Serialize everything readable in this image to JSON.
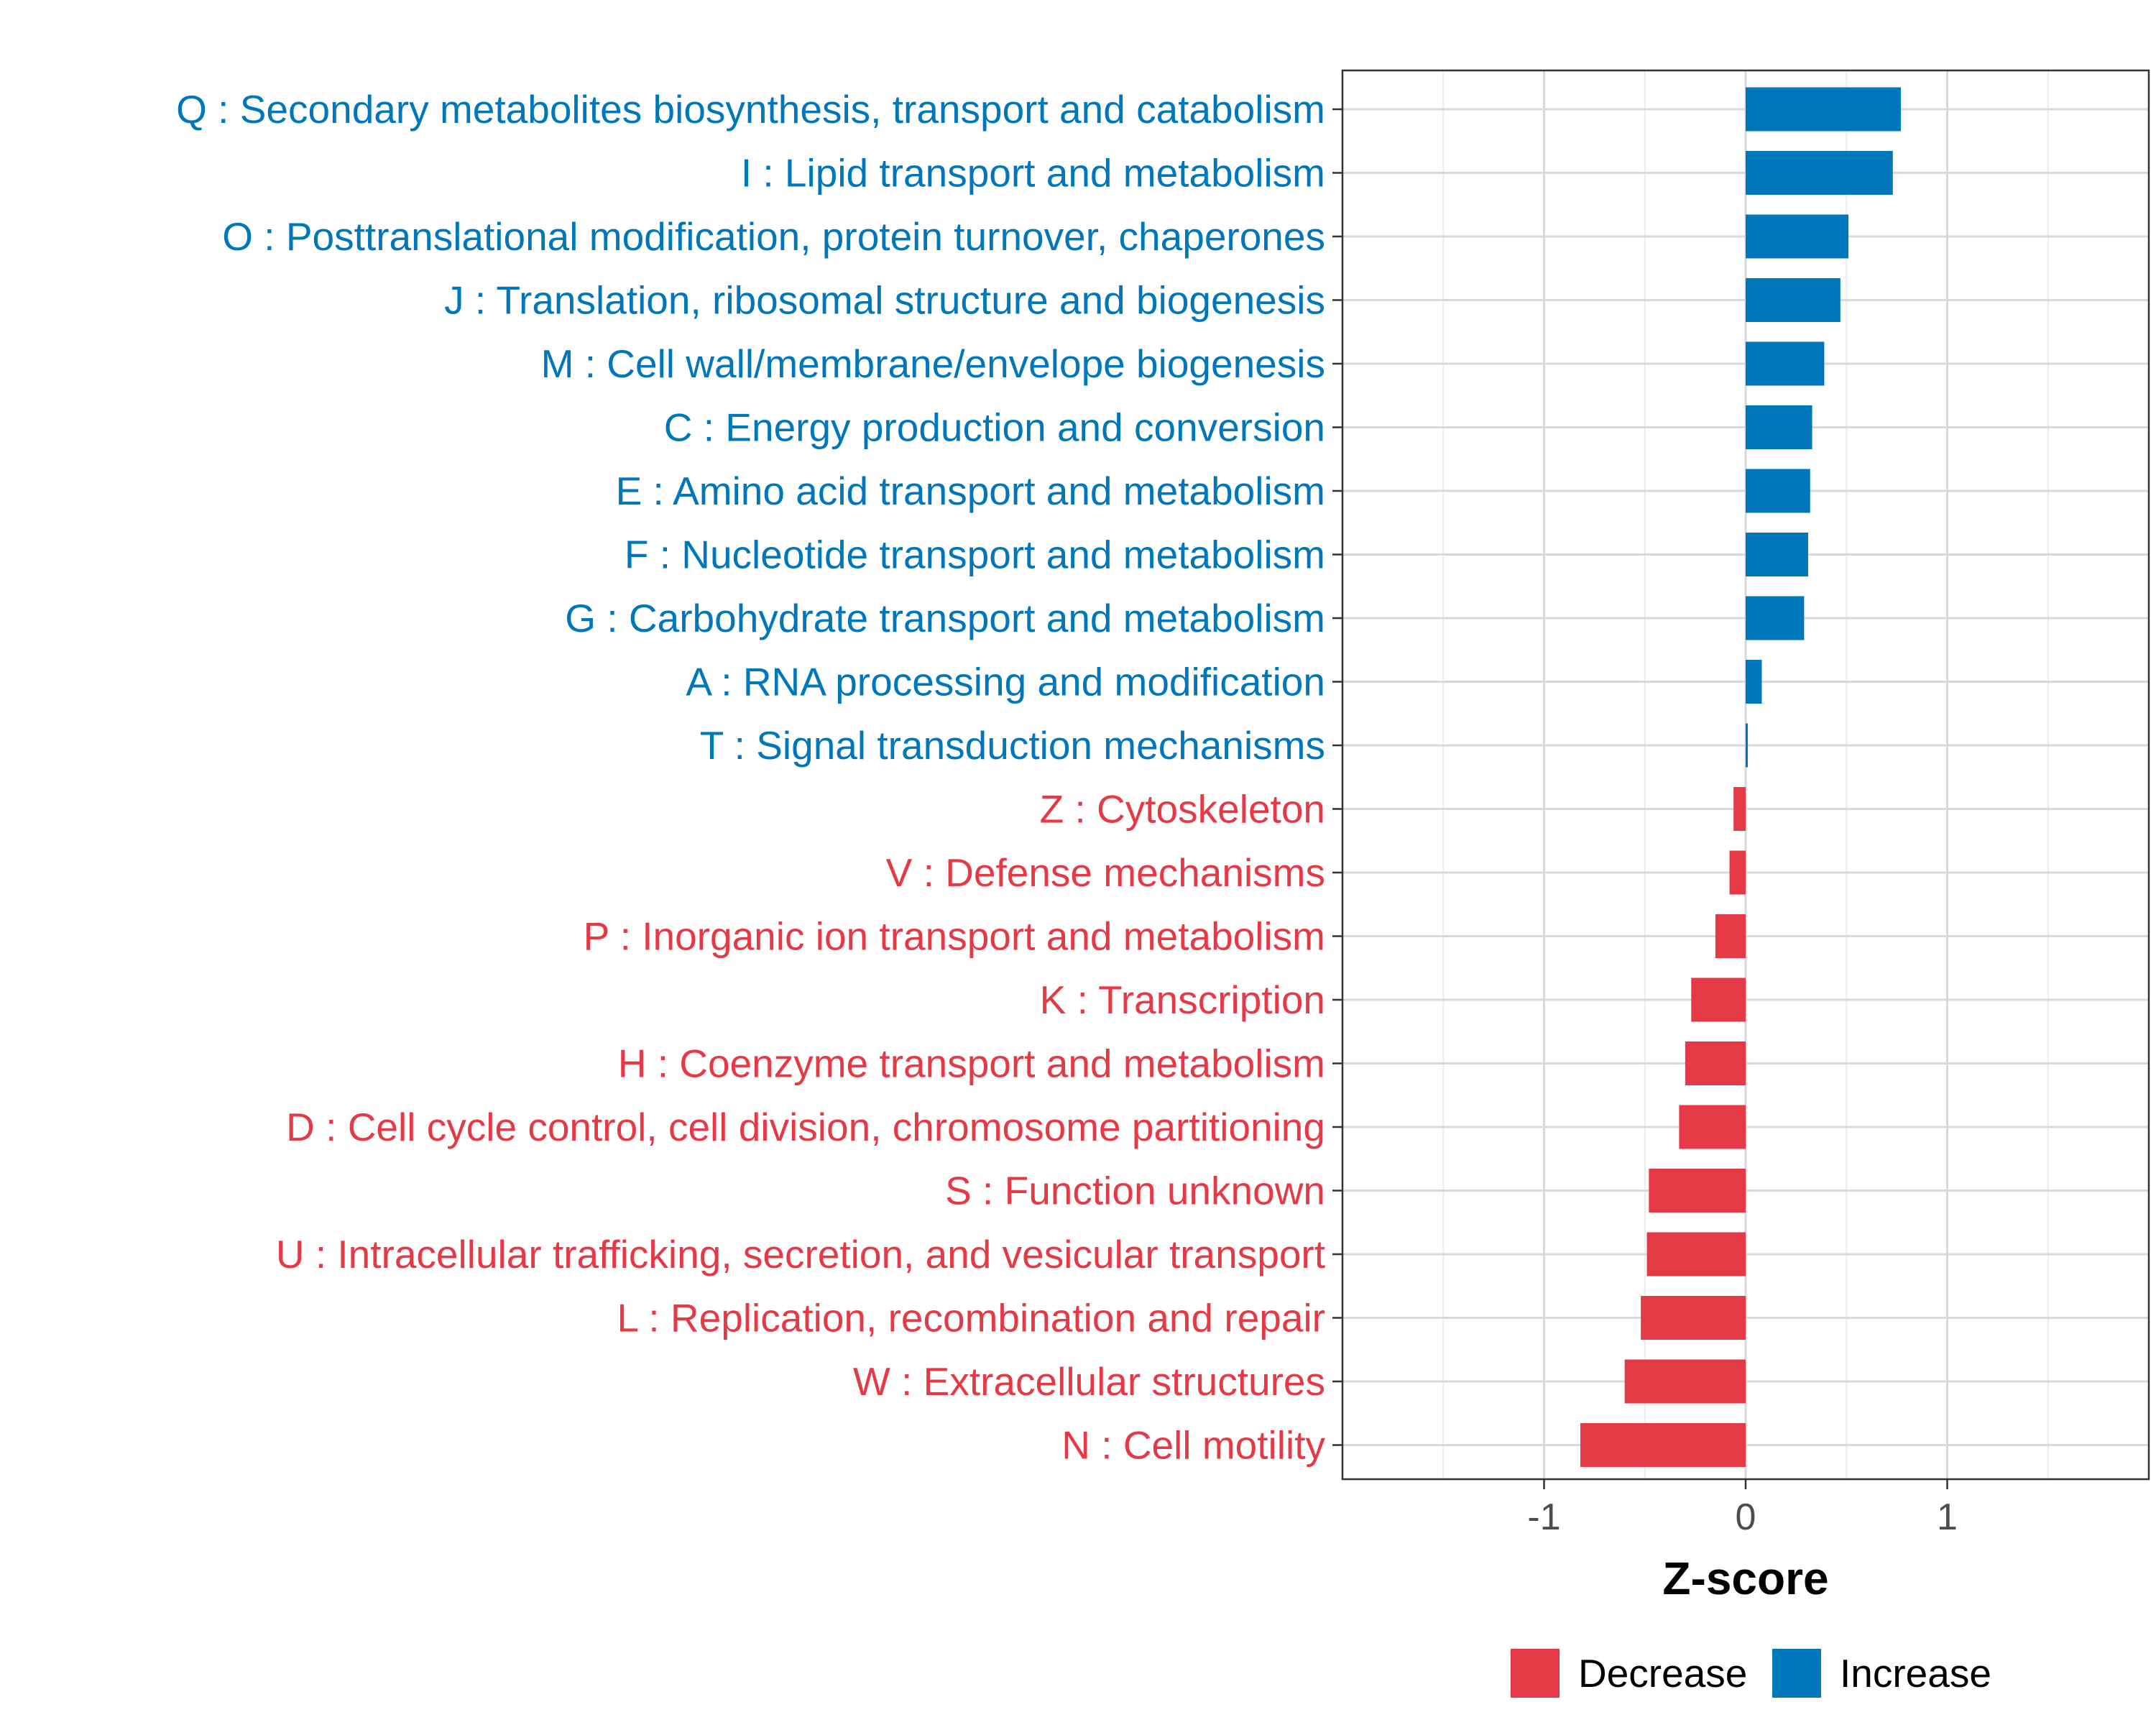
{
  "chart_data": {
    "type": "bar",
    "orientation": "horizontal",
    "xlabel": "Z-score",
    "ylabel": "",
    "xlim": [
      -2.0,
      2.0
    ],
    "x_ticks": [
      {
        "value": -1,
        "label": "-1"
      },
      {
        "value": 0,
        "label": "0"
      },
      {
        "value": 1,
        "label": "1"
      }
    ],
    "grid": true,
    "colors": {
      "Increase": "#0077bb",
      "Decrease": "#e63946"
    },
    "legend": {
      "position": "bottom",
      "entries": [
        {
          "name": "Decrease",
          "label": "Decrease",
          "color": "#e63946"
        },
        {
          "name": "Increase",
          "label": "Increase",
          "color": "#0077bb"
        }
      ]
    },
    "categories": [
      {
        "label": "Q : Secondary metabolites biosynthesis, transport and catabolism",
        "value": 0.77,
        "direction": "Increase"
      },
      {
        "label": "I : Lipid transport and metabolism",
        "value": 0.73,
        "direction": "Increase"
      },
      {
        "label": "O : Posttranslational modification, protein turnover, chaperones",
        "value": 0.51,
        "direction": "Increase"
      },
      {
        "label": "J : Translation, ribosomal structure and biogenesis",
        "value": 0.47,
        "direction": "Increase"
      },
      {
        "label": "M : Cell wall/membrane/envelope biogenesis",
        "value": 0.39,
        "direction": "Increase"
      },
      {
        "label": "C : Energy production and conversion",
        "value": 0.33,
        "direction": "Increase"
      },
      {
        "label": "E : Amino acid transport and metabolism",
        "value": 0.32,
        "direction": "Increase"
      },
      {
        "label": "F : Nucleotide transport and metabolism",
        "value": 0.31,
        "direction": "Increase"
      },
      {
        "label": "G : Carbohydrate transport and metabolism",
        "value": 0.29,
        "direction": "Increase"
      },
      {
        "label": "A : RNA processing and modification",
        "value": 0.08,
        "direction": "Increase"
      },
      {
        "label": "T : Signal transduction mechanisms",
        "value": 0.01,
        "direction": "Increase"
      },
      {
        "label": "Z : Cytoskeleton",
        "value": -0.06,
        "direction": "Decrease"
      },
      {
        "label": "V : Defense mechanisms",
        "value": -0.08,
        "direction": "Decrease"
      },
      {
        "label": "P : Inorganic ion transport and metabolism",
        "value": -0.15,
        "direction": "Decrease"
      },
      {
        "label": "K : Transcription",
        "value": -0.27,
        "direction": "Decrease"
      },
      {
        "label": "H : Coenzyme transport and metabolism",
        "value": -0.3,
        "direction": "Decrease"
      },
      {
        "label": "D : Cell cycle control, cell division, chromosome partitioning",
        "value": -0.33,
        "direction": "Decrease"
      },
      {
        "label": "S : Function unknown",
        "value": -0.48,
        "direction": "Decrease"
      },
      {
        "label": "U : Intracellular trafficking, secretion, and vesicular transport",
        "value": -0.49,
        "direction": "Decrease"
      },
      {
        "label": "L : Replication, recombination and repair",
        "value": -0.52,
        "direction": "Decrease"
      },
      {
        "label": "W : Extracellular structures",
        "value": -0.6,
        "direction": "Decrease"
      },
      {
        "label": "N : Cell motility",
        "value": -0.82,
        "direction": "Decrease"
      }
    ]
  }
}
